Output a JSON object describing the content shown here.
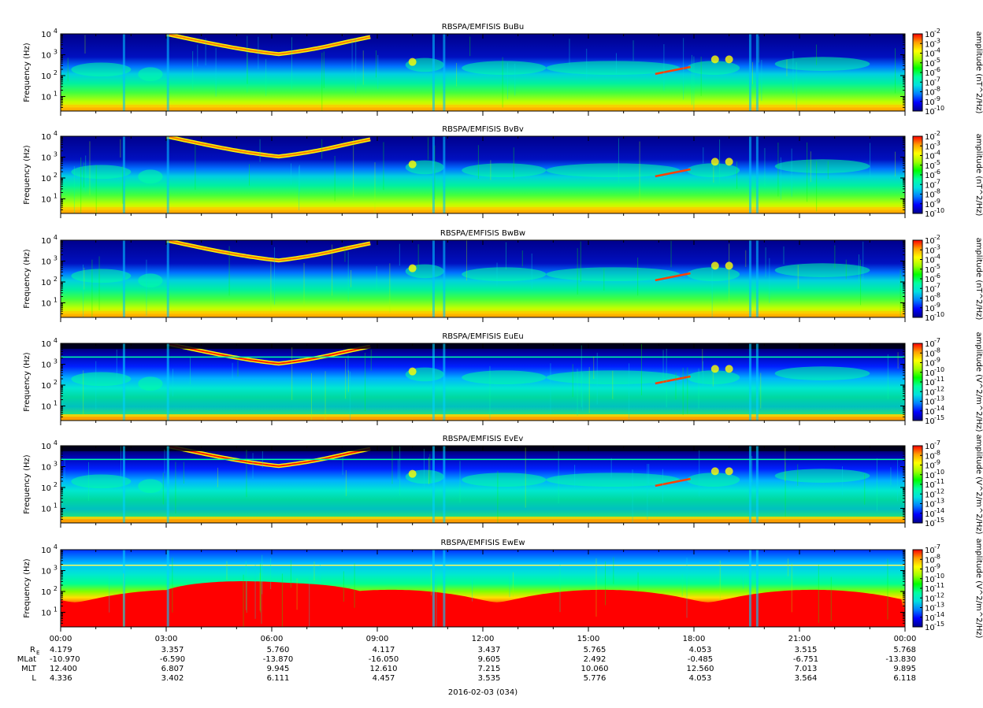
{
  "colors": {
    "colormap": [
      "#00008c",
      "#0000ff",
      "#0080ff",
      "#00e0e0",
      "#00ffa0",
      "#00ff00",
      "#a0ff00",
      "#ffff00",
      "#ffa000",
      "#ff0000"
    ],
    "axis": "#000000",
    "background": "#ffffff"
  },
  "chart_data": [
    {
      "type": "heatmap",
      "title": "RBSPA/EMFISIS  BuBu",
      "ylabel": "Frequency (Hz)",
      "yscale": "log",
      "ylim": [
        2,
        10000
      ],
      "yticks": [
        {
          "value": 10,
          "exp": "1"
        },
        {
          "value": 100,
          "exp": "2"
        },
        {
          "value": 1000,
          "exp": "3"
        },
        {
          "value": 10000,
          "exp": "4"
        }
      ],
      "colorbar": {
        "label": "amplitude (nT^2/Hz)",
        "scale": "log",
        "min_exp": -10,
        "max_exp": -2,
        "ticks": [
          "-2",
          "-3",
          "-4",
          "-5",
          "-6",
          "-7",
          "-8",
          "-9",
          "-10"
        ]
      }
    },
    {
      "type": "heatmap",
      "title": "RBSPA/EMFISIS  BvBv",
      "ylabel": "Frequency (Hz)",
      "yscale": "log",
      "ylim": [
        2,
        10000
      ],
      "yticks": [
        {
          "value": 10,
          "exp": "1"
        },
        {
          "value": 100,
          "exp": "2"
        },
        {
          "value": 1000,
          "exp": "3"
        },
        {
          "value": 10000,
          "exp": "4"
        }
      ],
      "colorbar": {
        "label": "amplitude (nT^2/Hz)",
        "scale": "log",
        "min_exp": -10,
        "max_exp": -2,
        "ticks": [
          "-2",
          "-3",
          "-4",
          "-5",
          "-6",
          "-7",
          "-8",
          "-9",
          "-10"
        ]
      }
    },
    {
      "type": "heatmap",
      "title": "RBSPA/EMFISIS  BwBw",
      "ylabel": "Frequency (Hz)",
      "yscale": "log",
      "ylim": [
        2,
        10000
      ],
      "yticks": [
        {
          "value": 10,
          "exp": "1"
        },
        {
          "value": 100,
          "exp": "2"
        },
        {
          "value": 1000,
          "exp": "3"
        },
        {
          "value": 10000,
          "exp": "4"
        }
      ],
      "colorbar": {
        "label": "amplitude (nT^2/Hz)",
        "scale": "log",
        "min_exp": -10,
        "max_exp": -2,
        "ticks": [
          "-2",
          "-3",
          "-4",
          "-5",
          "-6",
          "-7",
          "-8",
          "-9",
          "-10"
        ]
      }
    },
    {
      "type": "heatmap",
      "title": "RBSPA/EMFISIS  EuEu",
      "ylabel": "Frequency (Hz)",
      "yscale": "log",
      "ylim": [
        2,
        10000
      ],
      "yticks": [
        {
          "value": 10,
          "exp": "1"
        },
        {
          "value": 100,
          "exp": "2"
        },
        {
          "value": 1000,
          "exp": "3"
        },
        {
          "value": 10000,
          "exp": "4"
        }
      ],
      "colorbar": {
        "label": "amplitude (V^2/m^2/Hz)",
        "scale": "log",
        "min_exp": -15,
        "max_exp": -7,
        "ticks": [
          "-7",
          "-8",
          "-9",
          "-10",
          "-11",
          "-12",
          "-13",
          "-14",
          "-15"
        ]
      }
    },
    {
      "type": "heatmap",
      "title": "RBSPA/EMFISIS  EvEv",
      "ylabel": "Frequency (Hz)",
      "yscale": "log",
      "ylim": [
        2,
        10000
      ],
      "yticks": [
        {
          "value": 10,
          "exp": "1"
        },
        {
          "value": 100,
          "exp": "2"
        },
        {
          "value": 1000,
          "exp": "3"
        },
        {
          "value": 10000,
          "exp": "4"
        }
      ],
      "colorbar": {
        "label": "amplitude (V^2/m^2/Hz)",
        "scale": "log",
        "min_exp": -15,
        "max_exp": -7,
        "ticks": [
          "-7",
          "-8",
          "-9",
          "-10",
          "-11",
          "-12",
          "-13",
          "-14",
          "-15"
        ]
      }
    },
    {
      "type": "heatmap",
      "title": "RBSPA/EMFISIS  EwEw",
      "ylabel": "Frequency (Hz)",
      "yscale": "log",
      "ylim": [
        2,
        10000
      ],
      "yticks": [
        {
          "value": 10,
          "exp": "1"
        },
        {
          "value": 100,
          "exp": "2"
        },
        {
          "value": 1000,
          "exp": "3"
        },
        {
          "value": 10000,
          "exp": "4"
        }
      ],
      "colorbar": {
        "label": "amplitude (V^2/m^2/Hz)",
        "scale": "log",
        "min_exp": -15,
        "max_exp": -7,
        "ticks": [
          "-7",
          "-8",
          "-9",
          "-10",
          "-11",
          "-12",
          "-13",
          "-14",
          "-15"
        ]
      }
    }
  ],
  "time_axis": {
    "start_hour": 0,
    "end_hour": 24,
    "major_ticks": [
      {
        "hour": 0,
        "label": "00:00"
      },
      {
        "hour": 3,
        "label": "03:00"
      },
      {
        "hour": 6,
        "label": "06:00"
      },
      {
        "hour": 9,
        "label": "09:00"
      },
      {
        "hour": 12,
        "label": "12:00"
      },
      {
        "hour": 15,
        "label": "15:00"
      },
      {
        "hour": 18,
        "label": "18:00"
      },
      {
        "hour": 21,
        "label": "21:00"
      },
      {
        "hour": 24,
        "label": "00:00"
      }
    ],
    "date_label": "2016-02-03 (034)"
  },
  "ephemeris": {
    "rows": [
      {
        "label_main": "R",
        "label_sub": "E",
        "values": [
          "4.179",
          "3.357",
          "5.760",
          "4.117",
          "3.437",
          "5.765",
          "4.053",
          "3.515",
          "5.768"
        ]
      },
      {
        "label_main": "MLat",
        "label_sub": "",
        "values": [
          "-10.970",
          "-6.590",
          "-13.870",
          "-16.050",
          "9.605",
          "2.492",
          "-0.485",
          "-6.751",
          "-13.830"
        ]
      },
      {
        "label_main": "MLT",
        "label_sub": "",
        "values": [
          "12.400",
          "6.807",
          "9.945",
          "12.610",
          "7.215",
          "10.060",
          "12.560",
          "7.013",
          "9.895"
        ]
      },
      {
        "label_main": "L",
        "label_sub": "",
        "values": [
          "4.336",
          "3.402",
          "6.111",
          "4.457",
          "3.535",
          "5.776",
          "4.053",
          "3.564",
          "6.118"
        ]
      }
    ]
  }
}
